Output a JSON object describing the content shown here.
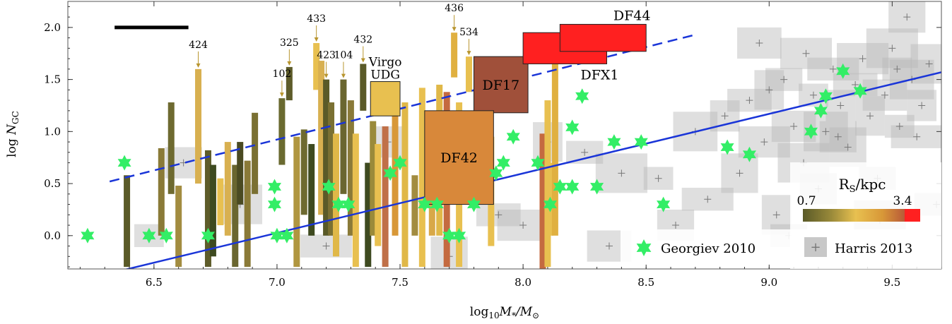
{
  "chart_data": {
    "type": "scatter",
    "xlabel_main": "log",
    "xlabel_sub": "10",
    "xlabel_rest": "M",
    "xlabel_sub2": "*",
    "xlabel_slash": "/M",
    "xlabel_sub3": "⊙",
    "ylabel_main": "log",
    "ylabel_italic": "N",
    "ylabel_sub": "GC",
    "xlim": [
      6.15,
      9.7
    ],
    "ylim": [
      -0.32,
      2.25
    ],
    "x_ticks": [
      6.5,
      7.0,
      7.5,
      8.0,
      8.5,
      9.0,
      9.5
    ],
    "x_tick_labels": [
      "6.5",
      "7.0",
      "7.5",
      "8.0",
      "8.5",
      "9.0",
      "9.5"
    ],
    "y_ticks": [
      0.0,
      0.5,
      1.0,
      1.5,
      2.0
    ],
    "y_tick_labels": [
      "0.0",
      "0.5",
      "1.0",
      "1.5",
      "2.0"
    ],
    "colorbar": {
      "title": "R",
      "title_sub": "S",
      "title_rest": "/kpc",
      "min_label": "0.7",
      "max_label": "3.4",
      "colors": [
        "#5a5a28",
        "#9a8a3a",
        "#e8c050",
        "#d89838",
        "#b85a38"
      ],
      "over_color": "#ff2020"
    },
    "lines": [
      {
        "style": "solid",
        "color": "#1a35d8",
        "x": [
          6.15,
          9.7
        ],
        "y": [
          -0.46,
          1.57
        ]
      },
      {
        "style": "dashed",
        "color": "#1a35d8",
        "x": [
          6.32,
          8.7
        ],
        "y": [
          0.52,
          1.93
        ]
      }
    ],
    "scale_bar": {
      "x": [
        6.34,
        6.64
      ],
      "y": 2.0,
      "color": "#000000"
    },
    "udg_bars": [
      {
        "x": 6.39,
        "y0": -0.3,
        "y1": 0.58,
        "color": "#5a5a28"
      },
      {
        "x": 6.53,
        "y0": 0.0,
        "y1": 0.84,
        "color": "#8a7a38"
      },
      {
        "x": 6.57,
        "y0": 0.4,
        "y1": 1.28,
        "color": "#6e6a30"
      },
      {
        "x": 6.6,
        "y0": -0.3,
        "y1": 0.48,
        "color": "#a28c40"
      },
      {
        "x": 6.68,
        "y0": 0.5,
        "y1": 1.6,
        "color": "#d8b050",
        "label": "424"
      },
      {
        "x": 6.72,
        "y0": -0.3,
        "y1": 0.82,
        "color": "#5e5c2a"
      },
      {
        "x": 6.74,
        "y0": -0.2,
        "y1": 0.68,
        "color": "#3e4a20"
      },
      {
        "x": 6.77,
        "y0": 0.1,
        "y1": 0.55,
        "color": "#e8c050"
      },
      {
        "x": 6.8,
        "y0": 0.0,
        "y1": 0.9,
        "color": "#d8b050"
      },
      {
        "x": 6.83,
        "y0": -0.3,
        "y1": 0.68,
        "color": "#6a6630"
      },
      {
        "x": 6.85,
        "y0": 0.3,
        "y1": 0.9,
        "color": "#4a4a22"
      },
      {
        "x": 6.88,
        "y0": -0.3,
        "y1": 0.72,
        "color": "#8a7a38"
      },
      {
        "x": 6.91,
        "y0": 0.4,
        "y1": 1.18,
        "color": "#7a7032"
      },
      {
        "x": 7.02,
        "y0": 0.68,
        "y1": 1.32,
        "color": "#6a6a30",
        "label": "102"
      },
      {
        "x": 7.05,
        "y0": 1.3,
        "y1": 1.62,
        "color": "#5e5c2a",
        "label": "325"
      },
      {
        "x": 7.08,
        "y0": -0.3,
        "y1": 0.95,
        "color": "#b09640"
      },
      {
        "x": 7.11,
        "y0": 0.2,
        "y1": 1.02,
        "color": "#6e6a30"
      },
      {
        "x": 7.14,
        "y0": 0.0,
        "y1": 0.88,
        "color": "#3e4a20"
      },
      {
        "x": 7.16,
        "y0": 1.4,
        "y1": 1.85,
        "color": "#e8c050",
        "label": "433"
      },
      {
        "x": 7.18,
        "y0": 0.2,
        "y1": 1.68,
        "color": "#d8b050"
      },
      {
        "x": 7.2,
        "y0": 0.0,
        "y1": 1.5,
        "color": "#5a5a28",
        "label": "423"
      },
      {
        "x": 7.22,
        "y0": 0.0,
        "y1": 1.28,
        "color": "#7a7032"
      },
      {
        "x": 7.24,
        "y0": -0.2,
        "y1": 0.98,
        "color": "#e0b848"
      },
      {
        "x": 7.27,
        "y0": 0.4,
        "y1": 1.5,
        "color": "#6a6630",
        "label": "104"
      },
      {
        "x": 7.3,
        "y0": 0.0,
        "y1": 1.3,
        "color": "#8a7a38"
      },
      {
        "x": 7.32,
        "y0": -0.3,
        "y1": 0.98,
        "color": "#e8c050"
      },
      {
        "x": 7.35,
        "y0": 1.2,
        "y1": 1.65,
        "color": "#5a5a28",
        "label": "432"
      },
      {
        "x": 7.37,
        "y0": -0.3,
        "y1": 0.7,
        "color": "#3e4a20"
      },
      {
        "x": 7.39,
        "y0": 0.0,
        "y1": 1.1,
        "color": "#9a8a3a"
      },
      {
        "x": 7.41,
        "y0": -0.1,
        "y1": 0.88,
        "color": "#e8c050"
      },
      {
        "x": 7.44,
        "y0": -0.3,
        "y1": 1.05,
        "color": "#c07048"
      },
      {
        "x": 7.48,
        "y0": 0.0,
        "y1": 1.2,
        "color": "#d89838"
      },
      {
        "x": 7.52,
        "y0": -0.3,
        "y1": 1.28,
        "color": "#e0b848"
      },
      {
        "x": 7.56,
        "y0": 0.0,
        "y1": 0.58,
        "color": "#a28c40"
      },
      {
        "x": 7.59,
        "y0": -0.3,
        "y1": 1.42,
        "color": "#e8c050"
      },
      {
        "x": 7.63,
        "y0": 0.0,
        "y1": 1.18,
        "color": "#d8a848"
      },
      {
        "x": 7.66,
        "y0": 0.0,
        "y1": 1.45,
        "color": "#e0b848"
      },
      {
        "x": 7.69,
        "y0": -0.3,
        "y1": 1.38,
        "color": "#c46a40"
      },
      {
        "x": 7.72,
        "y0": 1.52,
        "y1": 1.95,
        "color": "#e0b040",
        "label": "436"
      },
      {
        "x": 7.74,
        "y0": -0.3,
        "y1": 1.28,
        "color": "#e8c050"
      },
      {
        "x": 7.78,
        "y0": 1.38,
        "y1": 1.72,
        "color": "#e8c050",
        "label": "534"
      },
      {
        "x": 7.87,
        "y0": -0.1,
        "y1": 0.95,
        "color": "#e8c050"
      },
      {
        "x": 8.08,
        "y0": -0.35,
        "y1": 0.98,
        "color": "#c46a40"
      },
      {
        "x": 8.1,
        "y0": -0.3,
        "y1": 1.3,
        "color": "#e8c050"
      },
      {
        "x": 8.11,
        "y0": 0.0,
        "y1": 0.7,
        "color": "#e8c050"
      },
      {
        "x": 8.13,
        "y0": 0.0,
        "y1": 1.75,
        "color": "#e0b040"
      }
    ],
    "named_boxes": [
      {
        "name": "Virgo UDG",
        "x0": 7.38,
        "x1": 7.5,
        "y0": 1.15,
        "y1": 1.48,
        "color": "#e8c050"
      },
      {
        "name": "DF17",
        "x0": 7.8,
        "x1": 8.02,
        "y0": 1.18,
        "y1": 1.72,
        "color": "#a0503a"
      },
      {
        "name": "DF42",
        "x0": 7.6,
        "x1": 7.88,
        "y0": 0.3,
        "y1": 1.2,
        "color": "#d8883a"
      },
      {
        "name": "DFX1",
        "x0": 8.0,
        "x1": 8.34,
        "y0": 1.65,
        "y1": 1.95,
        "color": "#ff2020"
      },
      {
        "name": "DF44",
        "x0": 8.15,
        "x1": 8.5,
        "y0": 1.77,
        "y1": 2.03,
        "color": "#ff2020"
      }
    ],
    "georgiev_2010": {
      "name": "Georgiev 2010",
      "color": "#33ee66",
      "points": [
        [
          6.23,
          0.0
        ],
        [
          6.38,
          0.7
        ],
        [
          6.48,
          0.0
        ],
        [
          6.55,
          0.0
        ],
        [
          6.72,
          0.0
        ],
        [
          6.99,
          0.47
        ],
        [
          6.99,
          0.3
        ],
        [
          7.0,
          0.0
        ],
        [
          7.04,
          0.0
        ],
        [
          7.21,
          0.47
        ],
        [
          7.25,
          0.3
        ],
        [
          7.29,
          0.3
        ],
        [
          7.46,
          0.6
        ],
        [
          7.5,
          0.7
        ],
        [
          7.6,
          0.3
        ],
        [
          7.65,
          0.3
        ],
        [
          7.7,
          0.0
        ],
        [
          7.74,
          0.0
        ],
        [
          7.8,
          0.3
        ],
        [
          7.89,
          0.6
        ],
        [
          7.92,
          0.7
        ],
        [
          7.96,
          0.95
        ],
        [
          8.06,
          0.7
        ],
        [
          8.11,
          0.3
        ],
        [
          8.15,
          0.47
        ],
        [
          8.2,
          0.47
        ],
        [
          8.2,
          1.04
        ],
        [
          8.24,
          1.34
        ],
        [
          8.3,
          0.47
        ],
        [
          8.37,
          0.9
        ],
        [
          8.48,
          0.9
        ],
        [
          8.57,
          0.3
        ],
        [
          8.83,
          0.85
        ],
        [
          8.92,
          0.78
        ],
        [
          9.17,
          1.0
        ],
        [
          9.21,
          1.2
        ],
        [
          9.23,
          1.34
        ],
        [
          9.3,
          1.58
        ],
        [
          9.37,
          1.39
        ]
      ]
    },
    "harris_2013": {
      "name": "Harris 2013",
      "marker": "+",
      "color": "#888888",
      "points": [
        [
          6.48,
          0.0
        ],
        [
          6.62,
          0.7
        ],
        [
          6.85,
          0.3
        ],
        [
          7.2,
          -0.1
        ],
        [
          7.45,
          0.9
        ],
        [
          7.7,
          -0.2
        ],
        [
          7.9,
          0.2
        ],
        [
          8.0,
          0.1
        ],
        [
          8.1,
          0.9
        ],
        [
          8.25,
          0.8
        ],
        [
          8.35,
          -0.1
        ],
        [
          8.4,
          0.6
        ],
        [
          8.55,
          0.55
        ],
        [
          8.62,
          0.1
        ],
        [
          8.7,
          1.0
        ],
        [
          8.75,
          0.35
        ],
        [
          8.82,
          1.15
        ],
        [
          8.88,
          0.6
        ],
        [
          8.92,
          1.3
        ],
        [
          8.98,
          0.9
        ],
        [
          9.03,
          0.2
        ],
        [
          9.06,
          1.5
        ],
        [
          9.1,
          1.05
        ],
        [
          9.14,
          0.7
        ],
        [
          9.18,
          1.35
        ],
        [
          9.2,
          0.45
        ],
        [
          9.23,
          1.0
        ],
        [
          9.26,
          1.6
        ],
        [
          9.29,
          1.25
        ],
        [
          9.32,
          0.85
        ],
        [
          9.35,
          1.45
        ],
        [
          9.38,
          1.7
        ],
        [
          9.41,
          1.15
        ],
        [
          9.44,
          0.55
        ],
        [
          9.47,
          1.35
        ],
        [
          9.5,
          1.8
        ],
        [
          9.53,
          1.05
        ],
        [
          9.56,
          2.1
        ],
        [
          9.58,
          1.5
        ],
        [
          9.6,
          0.95
        ],
        [
          9.62,
          1.25
        ],
        [
          9.65,
          1.65
        ],
        [
          9.68,
          0.3
        ],
        [
          9.15,
          1.75
        ],
        [
          9.0,
          1.4
        ],
        [
          9.08,
          0.0
        ],
        [
          8.96,
          1.85
        ],
        [
          9.45,
          0.15
        ],
        [
          9.52,
          1.6
        ],
        [
          9.28,
          0.95
        ]
      ]
    },
    "legend": [
      {
        "name": "Georgiev 2010",
        "marker": "star"
      },
      {
        "name": "Harris 2013",
        "marker": "plus"
      }
    ]
  }
}
